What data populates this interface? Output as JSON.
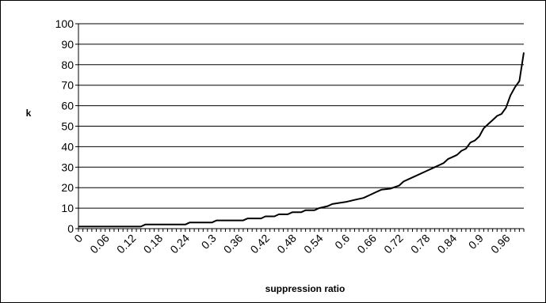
{
  "chart_data": {
    "type": "line",
    "title": "",
    "xlabel": "suppression ratio",
    "ylabel": "k",
    "ylim": [
      0,
      100
    ],
    "yticks": [
      0,
      10,
      20,
      30,
      40,
      50,
      60,
      70,
      80,
      90,
      100
    ],
    "xlim": [
      0,
      1
    ],
    "xtick_labels": [
      "0",
      "0.06",
      "0.12",
      "0.18",
      "0.24",
      "0.3",
      "0.36",
      "0.42",
      "0.48",
      "0.54",
      "0.6",
      "0.66",
      "0.72",
      "0.78",
      "0.84",
      "0.9",
      "0.96"
    ],
    "grid": "horizontal",
    "legend": "none",
    "line_color": "#000000",
    "series": [
      {
        "x": [
          0,
          0.14,
          0.15,
          0.24,
          0.25,
          0.3,
          0.31,
          0.37,
          0.38,
          0.41,
          0.42,
          0.44,
          0.45,
          0.47,
          0.48,
          0.5,
          0.51,
          0.53,
          0.54,
          0.56,
          0.57,
          0.6,
          0.62,
          0.64,
          0.66,
          0.67,
          0.68,
          0.7,
          0.72,
          0.73,
          0.74,
          0.76,
          0.78,
          0.8,
          0.82,
          0.83,
          0.84,
          0.85,
          0.86,
          0.87,
          0.88,
          0.89,
          0.9,
          0.91,
          0.92,
          0.93,
          0.94,
          0.95,
          0.96,
          0.97,
          0.98,
          0.99,
          1.0
        ],
        "y": [
          1,
          1,
          2,
          2,
          3,
          3,
          4,
          4,
          5,
          5,
          6,
          6,
          7,
          7,
          8,
          8,
          9,
          9,
          10,
          11,
          12,
          13,
          14,
          15,
          17,
          18,
          19,
          19.5,
          21,
          23,
          24,
          26,
          28,
          30,
          32,
          34,
          35,
          36,
          38,
          39,
          42,
          43,
          45,
          49,
          51,
          53,
          55,
          56,
          59,
          65,
          69,
          72,
          86
        ]
      }
    ]
  }
}
